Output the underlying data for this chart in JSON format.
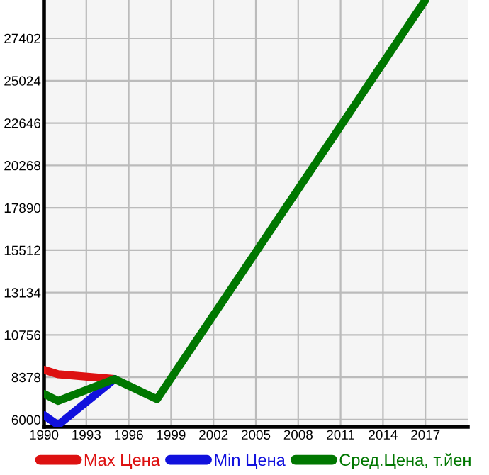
{
  "chart_data": {
    "type": "line",
    "xlim": [
      1990,
      2020
    ],
    "ylim": [
      5600,
      29550
    ],
    "xticks": [
      1990,
      1993,
      1996,
      1999,
      2002,
      2005,
      2008,
      2011,
      2014,
      2017
    ],
    "yticks": [
      6000,
      8378,
      10756,
      13134,
      15512,
      17890,
      20268,
      22646,
      25024,
      27402
    ],
    "grid": true,
    "legend": "bottom",
    "marker": "none",
    "line_style": "solid",
    "series": [
      {
        "name": "Max Цена",
        "color": "#dd1111",
        "x": [
          1990,
          1991,
          1995
        ],
        "values": [
          8800,
          8550,
          8280
        ]
      },
      {
        "name": "Min Цена",
        "color": "#1111dd",
        "x": [
          1990,
          1991,
          1995
        ],
        "values": [
          6250,
          5700,
          8280
        ]
      },
      {
        "name": "Сред.Цена, т.йен",
        "color": "#007700",
        "x": [
          1990,
          1991,
          1995,
          1998,
          2017
        ],
        "values": [
          7450,
          7050,
          8280,
          7150,
          29550
        ]
      }
    ]
  }
}
